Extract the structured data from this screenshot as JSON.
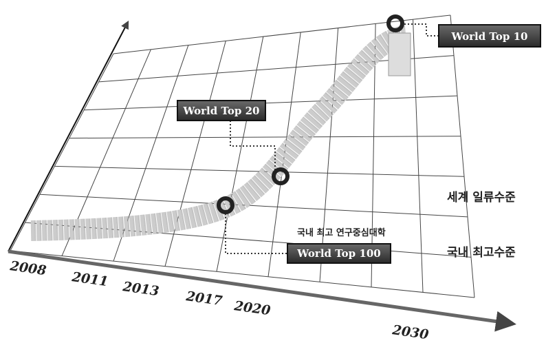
{
  "years": [
    "2008",
    "2011",
    "2013",
    "2017",
    "2020",
    "2030"
  ],
  "milestones": [
    "World Top 10",
    "World Top 20",
    "World Top 100"
  ],
  "levels": [
    "세계 일류수준",
    "국내 최고수준"
  ],
  "annotation": "국내 최고 연구중심대학"
}
